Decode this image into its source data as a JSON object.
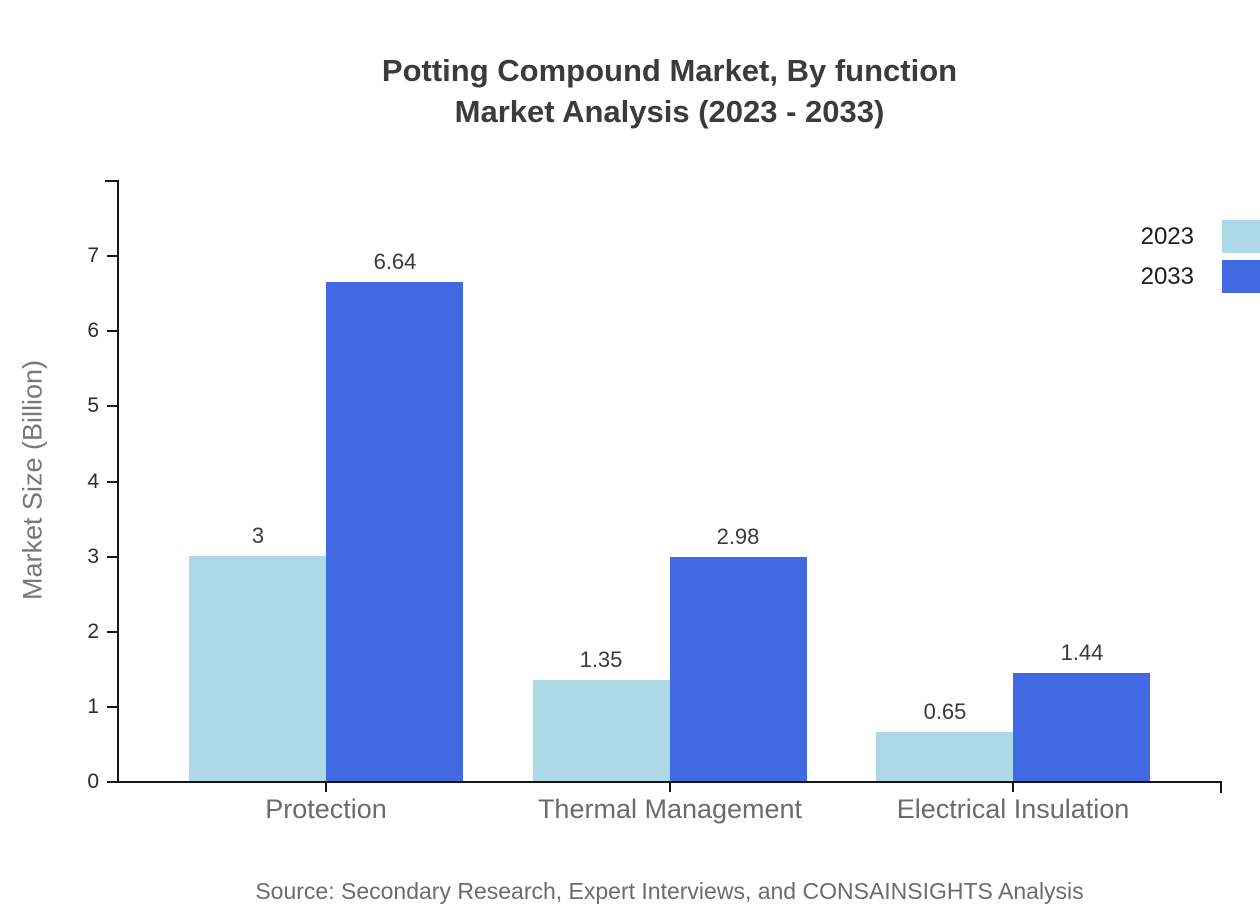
{
  "title": {
    "line1": "Potting Compound Market, By function",
    "line2": "Market Analysis (2023 - 2033)"
  },
  "source": "Source: Secondary Research, Expert Interviews, and CONSAINSIGHTS Analysis",
  "chart_data": {
    "type": "bar",
    "title": "Potting Compound Market, By function Market Analysis (2023 - 2033)",
    "categories": [
      "Protection",
      "Thermal Management",
      "Electrical Insulation"
    ],
    "series": [
      {
        "name": "2023",
        "color": "#ADD8E6",
        "values": [
          3,
          1.35,
          0.65
        ]
      },
      {
        "name": "2033",
        "color": "#4169E1",
        "values": [
          6.64,
          2.98,
          1.44
        ]
      }
    ],
    "xlabel": "",
    "ylabel": "Market Size (Billion)",
    "yticks": [
      0,
      1,
      2,
      3,
      4,
      5,
      6,
      7
    ],
    "ylim": [
      0,
      8
    ],
    "grid": false,
    "legend_position": "top-right",
    "axis_color": "#161616"
  }
}
